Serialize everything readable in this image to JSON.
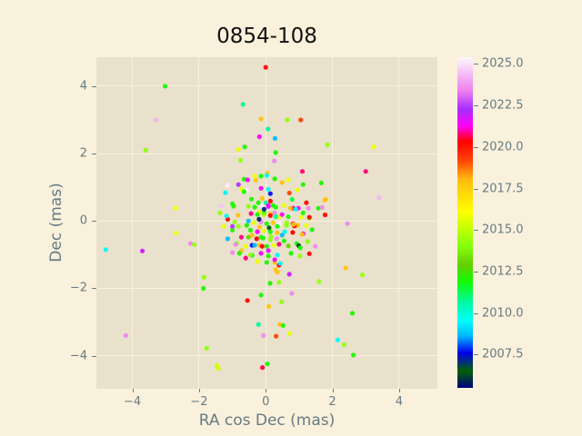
{
  "title": "0854-108",
  "colors": {
    "figure_bg": "#faf1dc",
    "axes_bg": "#e9e1cb",
    "grid": "#faf1dc",
    "tick_text": "#657b83",
    "title_text": "#121212"
  },
  "chart_data": {
    "type": "scatter",
    "title": "0854-108",
    "xlabel": "RA cos Dec (mas)",
    "ylabel": "Dec (mas)",
    "xlim": [
      -5.08,
      5.15
    ],
    "ylim": [
      -4.98,
      4.86
    ],
    "xticks": [
      -4,
      -2,
      0,
      2,
      4
    ],
    "xtick_labels": [
      "−4",
      "−2",
      "0",
      "2",
      "4"
    ],
    "yticks": [
      -4,
      -2,
      0,
      2,
      4
    ],
    "ytick_labels": [
      "−4",
      "−2",
      "0",
      "2",
      "4"
    ],
    "grid": true,
    "marker_size_px": 2.6,
    "colormap": "gist_ncar",
    "colorbar": {
      "vmin": 2005.5,
      "vmax": 2025.4,
      "ticks": [
        2007.5,
        2010.0,
        2012.5,
        2015.0,
        2017.5,
        2020.0,
        2022.5,
        2025.0
      ],
      "tick_labels": [
        "2007.5",
        "2010.0",
        "2012.5",
        "2015.0",
        "2017.5",
        "2020.0",
        "2022.5",
        "2025.0"
      ]
    },
    "points": [
      [
        0.0,
        4.56,
        2020.3
      ],
      [
        -3.02,
        4.0,
        2012.0
      ],
      [
        -3.3,
        3.0,
        2024.2
      ],
      [
        -3.6,
        2.1,
        2014.2
      ],
      [
        -0.68,
        3.46,
        2010.7
      ],
      [
        -0.14,
        3.03,
        2017.8
      ],
      [
        -0.19,
        2.5,
        2021.4
      ],
      [
        -0.63,
        2.2,
        2012.0
      ],
      [
        -0.82,
        2.12,
        2015.8
      ],
      [
        -0.76,
        1.8,
        2014.2
      ],
      [
        0.65,
        3.0,
        2014.2
      ],
      [
        1.05,
        3.0,
        2019.2
      ],
      [
        0.07,
        2.73,
        2010.7
      ],
      [
        0.28,
        2.45,
        2008.7
      ],
      [
        1.85,
        2.26,
        2014.2
      ],
      [
        3.24,
        2.2,
        2015.8
      ],
      [
        0.3,
        2.03,
        2012.0
      ],
      [
        0.26,
        1.78,
        2023.5
      ],
      [
        1.1,
        1.47,
        2020.8
      ],
      [
        3.0,
        1.47,
        2020.8
      ],
      [
        1.67,
        1.13,
        2012.0
      ],
      [
        0.05,
        1.42,
        2017.8
      ],
      [
        1.8,
        0.64,
        2017.8
      ],
      [
        3.4,
        0.69,
        2024.3
      ],
      [
        1.78,
        0.18,
        2020.3
      ],
      [
        -4.8,
        -0.85,
        2009.5
      ],
      [
        -3.7,
        -0.89,
        2021.8
      ],
      [
        -2.69,
        -0.36,
        2015.8
      ],
      [
        -2.26,
        -0.67,
        2023.5
      ],
      [
        -2.14,
        -0.7,
        2014.2
      ],
      [
        -1.85,
        -1.67,
        2014.2
      ],
      [
        -1.87,
        -2.0,
        2012.0
      ],
      [
        -0.55,
        -2.36,
        2020.3
      ],
      [
        -0.14,
        -2.2,
        2012.0
      ],
      [
        -0.22,
        -3.07,
        2010.7
      ],
      [
        -4.2,
        -3.4,
        2023.5
      ],
      [
        -0.07,
        -3.4,
        2023.5
      ],
      [
        -1.77,
        -3.78,
        2014.2
      ],
      [
        -1.47,
        -4.29,
        2015.3
      ],
      [
        -1.42,
        -4.38,
        2015.3
      ],
      [
        -0.1,
        -4.35,
        2020.6
      ],
      [
        0.05,
        -4.24,
        2012.0
      ],
      [
        2.45,
        -0.08,
        2023.5
      ],
      [
        2.4,
        -1.4,
        2017.8
      ],
      [
        2.9,
        -1.6,
        2014.2
      ],
      [
        1.6,
        -1.8,
        2014.2
      ],
      [
        0.78,
        -2.15,
        2023.5
      ],
      [
        0.48,
        -2.4,
        2014.2
      ],
      [
        0.09,
        -2.54,
        2017.8
      ],
      [
        0.42,
        -3.07,
        2017.8
      ],
      [
        0.52,
        -3.1,
        2012.0
      ],
      [
        0.72,
        -3.34,
        2015.8
      ],
      [
        0.31,
        -3.42,
        2019.2
      ],
      [
        2.6,
        -2.74,
        2012.0
      ],
      [
        2.16,
        -3.53,
        2009.5
      ],
      [
        2.35,
        -3.67,
        2014.2
      ],
      [
        2.63,
        -3.98,
        2012.0
      ],
      [
        -2.7,
        0.38,
        2015.8
      ],
      [
        -1.33,
        0.45,
        2024.5
      ],
      [
        -1.37,
        0.24,
        2014.2
      ],
      [
        -1.14,
        0.05,
        2020.3
      ],
      [
        -1.25,
        -0.16,
        2015.8
      ],
      [
        -1.0,
        -0.27,
        2012.0
      ],
      [
        -1.14,
        -0.53,
        2008.7
      ],
      [
        -0.87,
        -0.66,
        2014.2
      ],
      [
        -1.0,
        -0.94,
        2023.5
      ],
      [
        -0.73,
        -0.88,
        2017.8
      ],
      [
        -0.6,
        -1.1,
        2020.8
      ],
      [
        -0.41,
        -1.02,
        2012.0
      ],
      [
        -1.0,
        -0.16,
        2022.4
      ],
      [
        0.71,
        -1.58,
        2021.9
      ],
      [
        0.4,
        -1.82,
        2014.2
      ],
      [
        0.13,
        -1.85,
        2012.0
      ],
      [
        0.4,
        -1.31,
        2020.3
      ],
      [
        0.3,
        -1.44,
        2017.8
      ],
      [
        0.35,
        -1.52,
        2017.8
      ],
      [
        1.03,
        -1.04,
        2014.2
      ],
      [
        0.76,
        -0.96,
        2012.0
      ],
      [
        0.35,
        -1.01,
        2009.5
      ],
      [
        0.08,
        -0.88,
        2021.4
      ],
      [
        -1.21,
        0.84,
        2009.5
      ],
      [
        -1.18,
        0.15,
        2009.5
      ],
      [
        -0.96,
        0.44,
        2012.0
      ],
      [
        -0.83,
        0.17,
        2017.8
      ],
      [
        -0.43,
        0.65,
        2012.0
      ],
      [
        -0.65,
        1.24,
        2012.0
      ],
      [
        -0.3,
        1.21,
        2017.8
      ],
      [
        -0.14,
        0.97,
        2021.4
      ],
      [
        -0.73,
        0.94,
        2015.8
      ],
      [
        -0.57,
        0.91,
        2025.2
      ],
      [
        0.08,
        0.94,
        2009.5
      ],
      [
        0.14,
        0.81,
        2007.7
      ],
      [
        -0.11,
        0.67,
        2017.8
      ],
      [
        -0.22,
        0.54,
        2012.0
      ],
      [
        0.0,
        0.54,
        2010.7
      ],
      [
        0.14,
        0.59,
        2020.3
      ],
      [
        0.08,
        0.43,
        2021.4
      ],
      [
        0.22,
        0.46,
        2012.0
      ],
      [
        -0.19,
        0.27,
        2015.8
      ],
      [
        -0.05,
        0.24,
        2012.0
      ],
      [
        0.14,
        0.21,
        2017.8
      ],
      [
        0.27,
        0.24,
        2023.5
      ],
      [
        0.41,
        0.13,
        2015.8
      ],
      [
        -1.0,
        0.51,
        2012.0
      ],
      [
        -0.93,
        -0.03,
        2014.2
      ],
      [
        -0.82,
        1.08,
        2022.4
      ],
      [
        -0.54,
        1.22,
        2021.4
      ],
      [
        -0.33,
        1.33,
        2015.8
      ],
      [
        -0.14,
        1.33,
        2012.0
      ],
      [
        0.03,
        1.35,
        2009.5
      ],
      [
        0.27,
        1.25,
        2012.0
      ],
      [
        0.49,
        1.14,
        2017.8
      ],
      [
        0.68,
        1.22,
        2015.8
      ],
      [
        0.95,
        0.92,
        2015.8
      ],
      [
        1.12,
        1.08,
        2012.0
      ],
      [
        -1.15,
        1.06,
        2025.2
      ],
      [
        -0.65,
        0.87,
        2012.0
      ],
      [
        0.71,
        0.83,
        2019.2
      ],
      [
        0.79,
        0.64,
        2011.5
      ],
      [
        1.77,
        0.62,
        2017.8
      ],
      [
        1.22,
        0.54,
        2020.3
      ],
      [
        0.82,
        0.38,
        2020.8
      ],
      [
        0.98,
        0.38,
        2021.4
      ],
      [
        1.28,
        0.38,
        2023.5
      ],
      [
        1.58,
        0.38,
        2012.0
      ],
      [
        1.69,
        0.4,
        2023.5
      ],
      [
        0.71,
        0.16,
        2025.2
      ],
      [
        1.06,
        0.11,
        2015.8
      ],
      [
        1.31,
        0.08,
        2014.2
      ],
      [
        0.82,
        -0.08,
        2020.8
      ],
      [
        0.95,
        -0.13,
        2017.8
      ],
      [
        0.63,
        -0.13,
        2014.2
      ],
      [
        -0.52,
        0.44,
        2014.2
      ],
      [
        -0.33,
        0.41,
        2012.0
      ],
      [
        -0.11,
        0.46,
        2025.2
      ],
      [
        0.08,
        0.46,
        2021.4
      ],
      [
        0.3,
        0.41,
        2012.0
      ],
      [
        0.55,
        0.46,
        2015.8
      ],
      [
        0.74,
        0.38,
        2017.8
      ],
      [
        0.9,
        0.35,
        2009.5
      ],
      [
        -0.44,
        0.22,
        2020.8
      ],
      [
        -0.25,
        0.19,
        2012.0
      ],
      [
        -0.05,
        0.19,
        2014.2
      ],
      [
        0.14,
        0.16,
        2020.3
      ],
      [
        0.3,
        0.13,
        2010.7
      ],
      [
        0.49,
        0.19,
        2021.4
      ],
      [
        0.68,
        0.13,
        2012.0
      ],
      [
        -0.52,
        0.0,
        2008.7
      ],
      [
        -0.35,
        -0.05,
        2015.8
      ],
      [
        -0.14,
        -0.03,
        2023.5
      ],
      [
        0.03,
        -0.08,
        2012.0
      ],
      [
        0.22,
        -0.05,
        2017.8
      ],
      [
        0.41,
        -0.08,
        2025.2
      ],
      [
        0.63,
        -0.05,
        2014.2
      ],
      [
        0.86,
        -0.15,
        2020.3
      ],
      [
        -0.46,
        -0.27,
        2012.0
      ],
      [
        -0.25,
        -0.32,
        2021.4
      ],
      [
        -0.05,
        -0.29,
        2015.8
      ],
      [
        0.14,
        -0.32,
        2012.0
      ],
      [
        0.35,
        -0.35,
        2017.8
      ],
      [
        0.57,
        -0.32,
        2009.5
      ],
      [
        -0.52,
        -0.48,
        2013.0
      ],
      [
        -0.27,
        -0.53,
        2020.3
      ],
      [
        -0.08,
        -0.51,
        2012.0
      ],
      [
        0.14,
        -0.56,
        2014.2
      ],
      [
        0.33,
        -0.53,
        2023.5
      ],
      [
        0.55,
        -0.59,
        2012.0
      ],
      [
        -0.41,
        -0.72,
        2007.7
      ],
      [
        -0.19,
        -0.72,
        2017.8
      ],
      [
        0.03,
        -0.75,
        2012.0
      ],
      [
        0.25,
        -0.72,
        2015.8
      ],
      [
        -0.82,
        -0.16,
        2014.2
      ],
      [
        -0.57,
        -0.13,
        2012.0
      ],
      [
        -0.19,
        -0.18,
        2017.8
      ],
      [
        -0.73,
        -0.48,
        2020.8
      ],
      [
        -0.41,
        -0.42,
        2017.8
      ],
      [
        -0.14,
        -0.48,
        2012.0
      ],
      [
        -0.9,
        -0.7,
        2023.5
      ],
      [
        -0.6,
        -0.75,
        2015.8
      ],
      [
        -0.33,
        -0.72,
        2008.7
      ],
      [
        -0.11,
        -0.75,
        2020.3
      ],
      [
        -0.79,
        -0.96,
        2012.0
      ],
      [
        -0.46,
        -1.01,
        2014.2
      ],
      [
        -0.14,
        -0.96,
        2021.4
      ],
      [
        0.08,
        -1.04,
        2012.0
      ],
      [
        0.27,
        -1.23,
        2017.8
      ],
      [
        0.35,
        -0.16,
        2012.0
      ],
      [
        0.62,
        -0.11,
        2014.2
      ],
      [
        0.84,
        -0.1,
        2017.8
      ],
      [
        1.12,
        -0.38,
        2021.4
      ],
      [
        0.81,
        -0.34,
        2020.3
      ],
      [
        0.49,
        -0.42,
        2008.7
      ],
      [
        0.16,
        -0.47,
        2014.2
      ],
      [
        0.93,
        -0.67,
        2012.0
      ],
      [
        0.99,
        -0.73,
        2006.3
      ],
      [
        0.68,
        -0.74,
        2013.0
      ],
      [
        0.4,
        -0.69,
        2020.8
      ],
      [
        -0.25,
        -1.2,
        2015.8
      ],
      [
        0.03,
        -1.23,
        2012.0
      ],
      [
        0.27,
        -1.15,
        2021.4
      ],
      [
        0.44,
        -1.26,
        2009.5
      ],
      [
        1.12,
        0.24,
        2012.0
      ],
      [
        1.31,
        0.11,
        2020.3
      ],
      [
        1.22,
        -0.13,
        2015.8
      ],
      [
        1.39,
        -0.26,
        2012.0
      ],
      [
        1.09,
        -0.4,
        2017.8
      ],
      [
        1.26,
        -0.61,
        2014.2
      ],
      [
        1.49,
        -0.75,
        2023.5
      ],
      [
        1.04,
        -0.8,
        2012.0
      ],
      [
        1.31,
        -0.97,
        2020.3
      ],
      [
        -0.2,
        0.05,
        2005.8
      ],
      [
        0.1,
        -0.2,
        2006.5
      ],
      [
        -0.05,
        0.35,
        2007.2
      ]
    ]
  }
}
